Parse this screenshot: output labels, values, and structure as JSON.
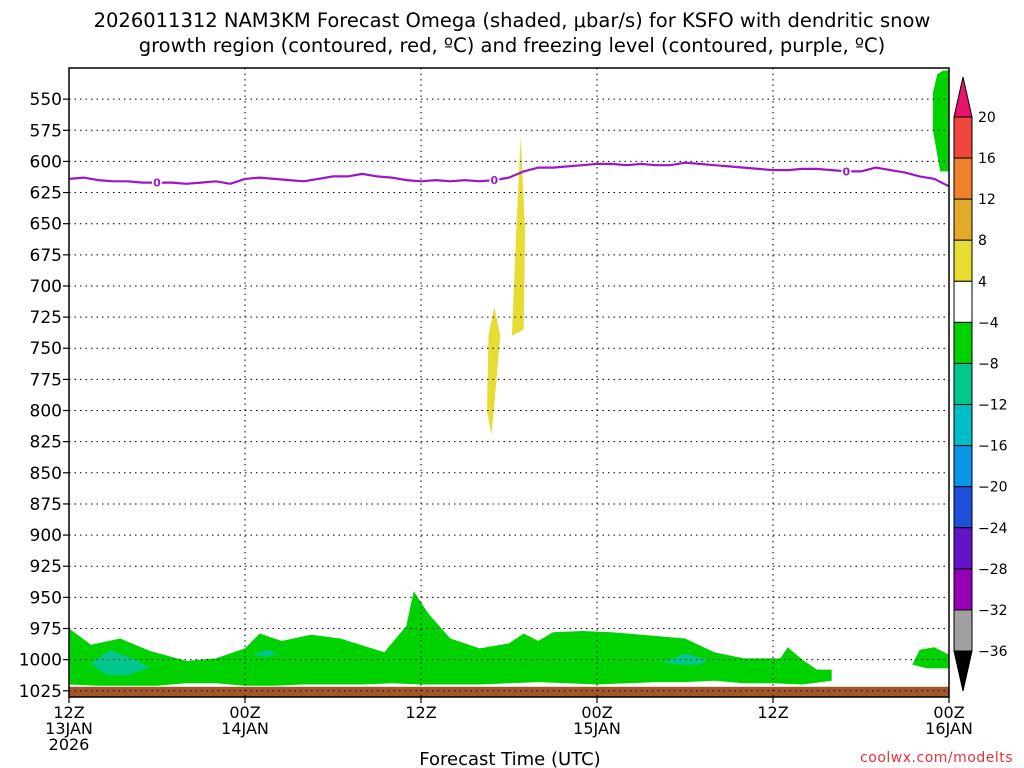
{
  "title": {
    "line1": "2026011312 NAM3KM Forecast Omega (shaded, μbar/s) for KSFO with dendritic snow",
    "line2": "growth region (contoured, red, ºC) and freezing level (contoured, purple, ºC)"
  },
  "credit": "coolwx.com/modelts",
  "chart_data": {
    "type": "area",
    "title": "2026011312 NAM3KM Forecast Omega (shaded, μbar/s) for KSFO with dendritic snow growth region (contoured, red, ºC) and freezing level (contoured, purple, ºC)",
    "xlabel": "Forecast Time (UTC)",
    "ylabel": "",
    "x_range_hours": [
      0,
      60
    ],
    "y_range_hpa": [
      1030,
      525
    ],
    "x_ticks": [
      {
        "hour": 0,
        "line1": "12Z",
        "line2": "13JAN",
        "line3": "2026"
      },
      {
        "hour": 12,
        "line1": "00Z",
        "line2": "14JAN",
        "line3": ""
      },
      {
        "hour": 24,
        "line1": "12Z",
        "line2": "",
        "line3": ""
      },
      {
        "hour": 36,
        "line1": "00Z",
        "line2": "15JAN",
        "line3": ""
      },
      {
        "hour": 48,
        "line1": "12Z",
        "line2": "",
        "line3": ""
      },
      {
        "hour": 60,
        "line1": "00Z",
        "line2": "16JAN",
        "line3": ""
      }
    ],
    "y_ticks": [
      550,
      575,
      600,
      625,
      650,
      675,
      700,
      725,
      750,
      775,
      800,
      825,
      850,
      875,
      900,
      925,
      950,
      975,
      1000,
      1025
    ],
    "grid": true,
    "colorbar": {
      "levels": [
        20,
        16,
        12,
        8,
        4,
        -4,
        -8,
        -12,
        -16,
        -20,
        -24,
        -28,
        -32,
        -36
      ],
      "colors": [
        "#e8146c",
        "#f0463c",
        "#f0822d",
        "#e1aa28",
        "#e6dc32",
        "#ffffff",
        "#00d200",
        "#00c88c",
        "#00bec8",
        "#0a96e6",
        "#1e50dc",
        "#6414c8",
        "#9600b4",
        "#a0a0a0",
        "#000000"
      ]
    },
    "freezing_level": {
      "label": "0",
      "color": "#a014c8",
      "hours": [
        0,
        1,
        2,
        3,
        4,
        5,
        6,
        7,
        8,
        9,
        10,
        11,
        12,
        13,
        14,
        15,
        16,
        17,
        18,
        19,
        20,
        21,
        22,
        23,
        24,
        25,
        26,
        27,
        28,
        29,
        30,
        31,
        32,
        33,
        34,
        35,
        36,
        37,
        38,
        39,
        40,
        41,
        42,
        43,
        44,
        45,
        46,
        47,
        48,
        49,
        50,
        51,
        52,
        53,
        54,
        55,
        56,
        57,
        58,
        59,
        60
      ],
      "pressure": [
        614,
        613,
        615,
        616,
        616,
        617,
        617,
        617,
        618,
        617,
        616,
        618,
        614,
        613,
        614,
        615,
        616,
        614,
        612,
        612,
        610,
        612,
        613,
        615,
        616,
        615,
        616,
        615,
        616,
        615,
        613,
        608,
        605,
        605,
        604,
        603,
        602,
        602,
        603,
        602,
        603,
        603,
        601,
        602,
        603,
        604,
        605,
        606,
        607,
        607,
        606,
        606,
        607,
        608,
        608,
        605,
        607,
        609,
        612,
        614,
        620
      ]
    },
    "shaded_regions": [
      {
        "name": "omega 4 to 8 (upper)",
        "color": "#e6dc32",
        "points": [
          [
            30.2,
            740
          ],
          [
            30.5,
            655
          ],
          [
            30.8,
            580
          ],
          [
            31.1,
            655
          ],
          [
            31.0,
            735
          ]
        ]
      },
      {
        "name": "omega 4 to 8 (lower)",
        "color": "#e6dc32",
        "points": [
          [
            28.5,
            800
          ],
          [
            28.6,
            740
          ],
          [
            29.0,
            717
          ],
          [
            29.4,
            740
          ],
          [
            29.0,
            795
          ],
          [
            28.8,
            820
          ]
        ]
      },
      {
        "name": "omega -4 to -8 (upper right)",
        "color": "#00d200",
        "points": [
          [
            59.2,
            530
          ],
          [
            59.6,
            527
          ],
          [
            60,
            527
          ],
          [
            60,
            608
          ],
          [
            59.4,
            608
          ],
          [
            58.9,
            575
          ],
          [
            58.9,
            545
          ]
        ]
      },
      {
        "name": "omega -4 to -8 (low level)",
        "color": "#00d200",
        "points": [
          [
            0,
            975
          ],
          [
            1.5,
            988
          ],
          [
            3.5,
            983
          ],
          [
            5.5,
            993
          ],
          [
            8,
            1001
          ],
          [
            10,
            999
          ],
          [
            12,
            991
          ],
          [
            13,
            979
          ],
          [
            14.5,
            985
          ],
          [
            16.5,
            980
          ],
          [
            18.5,
            983
          ],
          [
            21.5,
            994
          ],
          [
            23,
            973
          ],
          [
            23.5,
            945
          ],
          [
            24.5,
            963
          ],
          [
            26,
            983
          ],
          [
            28,
            991
          ],
          [
            30,
            987
          ],
          [
            31,
            979
          ],
          [
            32,
            985
          ],
          [
            33,
            978
          ],
          [
            35,
            977
          ],
          [
            37,
            978
          ],
          [
            39,
            980
          ],
          [
            42,
            983
          ],
          [
            44,
            994
          ],
          [
            46,
            999
          ],
          [
            48.5,
            999
          ],
          [
            49,
            990
          ],
          [
            50,
            1000
          ],
          [
            51,
            1008
          ],
          [
            52,
            1008
          ],
          [
            52,
            1017
          ],
          [
            50,
            1020
          ],
          [
            48,
            1019
          ],
          [
            46,
            1019
          ],
          [
            44,
            1017
          ],
          [
            42,
            1018
          ],
          [
            40,
            1018
          ],
          [
            38,
            1019
          ],
          [
            36,
            1020
          ],
          [
            34,
            1019
          ],
          [
            32,
            1018
          ],
          [
            30,
            1019
          ],
          [
            28,
            1020
          ],
          [
            26,
            1020
          ],
          [
            24,
            1020
          ],
          [
            22,
            1019
          ],
          [
            20,
            1020
          ],
          [
            18,
            1020
          ],
          [
            16,
            1020
          ],
          [
            14,
            1021
          ],
          [
            12,
            1021
          ],
          [
            10,
            1019
          ],
          [
            8,
            1019
          ],
          [
            6,
            1021
          ],
          [
            4,
            1021
          ],
          [
            2,
            1021
          ],
          [
            0,
            1020
          ]
        ]
      },
      {
        "name": "omega -8 to -12 (left)",
        "color": "#00c88c",
        "points": [
          [
            1.5,
            1003
          ],
          [
            2.8,
            992
          ],
          [
            4.5,
            1000
          ],
          [
            5.5,
            1006
          ],
          [
            4.0,
            1013
          ],
          [
            2.5,
            1012
          ]
        ]
      },
      {
        "name": "omega -8 to -12 (right)",
        "color": "#00c88c",
        "points": [
          [
            40.5,
            1002
          ],
          [
            42.0,
            995
          ],
          [
            43.5,
            1000
          ],
          [
            43,
            1004
          ],
          [
            41.5,
            1004
          ]
        ]
      },
      {
        "name": "omega -8 to -12 (small)",
        "color": "#00c88c",
        "points": [
          [
            12.5,
            996
          ],
          [
            13.5,
            992
          ],
          [
            14.2,
            995
          ],
          [
            13.5,
            998
          ]
        ]
      },
      {
        "name": "omega -4 to -8 (far right)",
        "color": "#00d200",
        "points": [
          [
            57.5,
            1004
          ],
          [
            58,
            992
          ],
          [
            59,
            990
          ],
          [
            60,
            996
          ],
          [
            60,
            1007
          ],
          [
            58.5,
            1007
          ]
        ]
      }
    ],
    "ground": {
      "color": "#a0582a"
    }
  }
}
